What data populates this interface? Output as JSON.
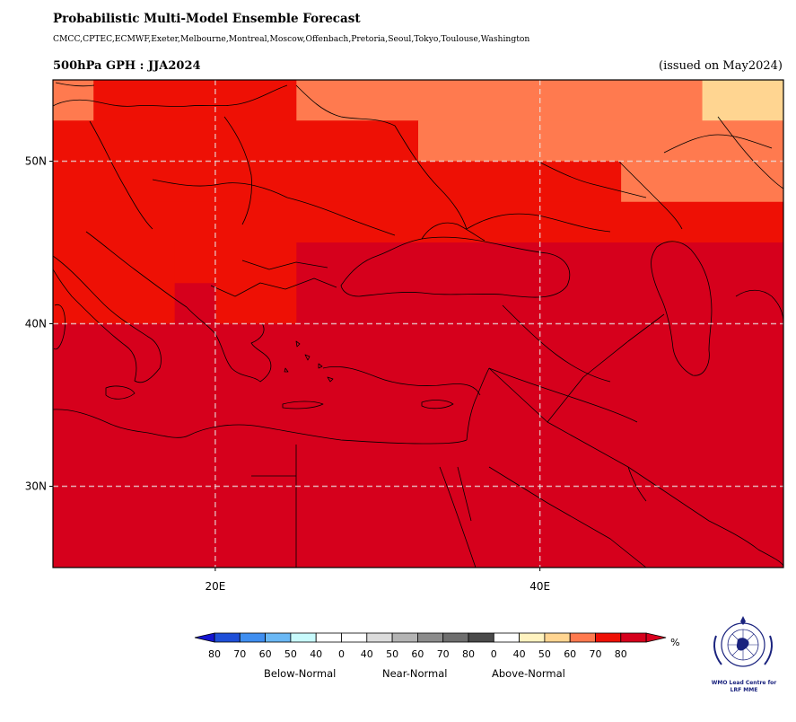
{
  "header": {
    "title": "Probabilistic Multi-Model Ensemble Forecast",
    "models": "CMCC,CPTEC,ECMWF,Exeter,Melbourne,Montreal,Moscow,Offenbach,Pretoria,Seoul,Tokyo,Toulouse,Washington",
    "variable": "500hPa GPH : JJA2024",
    "issued": "(issued on May2024)"
  },
  "map": {
    "lon_range": [
      10,
      55
    ],
    "lat_range": [
      25,
      55
    ],
    "lat_ticks": [
      {
        "value": 50,
        "label": "50N"
      },
      {
        "value": 40,
        "label": "40N"
      },
      {
        "value": 30,
        "label": "30N"
      }
    ],
    "lon_ticks": [
      {
        "value": 20,
        "label": "20E"
      },
      {
        "value": 40,
        "label": "40E"
      }
    ],
    "gridlines": true,
    "probability_cells": [
      {
        "lon": [
          10,
          12.5
        ],
        "lat": [
          52.5,
          55
        ],
        "value": 60
      },
      {
        "lon": [
          12.5,
          25
        ],
        "lat": [
          52.5,
          55
        ],
        "value": 70
      },
      {
        "lon": [
          25,
          50
        ],
        "lat": [
          52.5,
          55
        ],
        "value": 60
      },
      {
        "lon": [
          50,
          55
        ],
        "lat": [
          52.5,
          55
        ],
        "value": 50
      },
      {
        "lon": [
          10,
          32.5
        ],
        "lat": [
          50,
          52.5
        ],
        "value": 70
      },
      {
        "lon": [
          32.5,
          55
        ],
        "lat": [
          50,
          52.5
        ],
        "value": 60
      },
      {
        "lon": [
          10,
          45
        ],
        "lat": [
          47.5,
          50
        ],
        "value": 70
      },
      {
        "lon": [
          45,
          55
        ],
        "lat": [
          47.5,
          50
        ],
        "value": 60
      },
      {
        "lon": [
          10,
          55
        ],
        "lat": [
          45,
          47.5
        ],
        "value": 70
      },
      {
        "lon": [
          10,
          17.5
        ],
        "lat": [
          40,
          45
        ],
        "value": 70
      },
      {
        "lon": [
          17.5,
          20
        ],
        "lat": [
          42.5,
          45
        ],
        "value": 70
      },
      {
        "lon": [
          20,
          25
        ],
        "lat": [
          40,
          45
        ],
        "value": 70
      },
      {
        "lon": [
          25,
          55
        ],
        "lat": [
          40,
          45
        ],
        "value": 80
      },
      {
        "lon": [
          17.5,
          20
        ],
        "lat": [
          40,
          42.5
        ],
        "value": 80
      },
      {
        "lon": [
          10,
          55
        ],
        "lat": [
          25,
          40
        ],
        "value": 80
      }
    ]
  },
  "colorbar": {
    "unit": "%",
    "below": {
      "title": "Below-Normal",
      "labels": [
        "80",
        "70",
        "60",
        "50",
        "40"
      ],
      "colors": [
        "#1e4fd8",
        "#3f8ef0",
        "#6ab8f5",
        "#c8fafc",
        "#ffffff"
      ]
    },
    "near": {
      "title": "Near-Normal",
      "labels": [
        "0",
        "40",
        "50",
        "60",
        "70",
        "80"
      ],
      "colors": [
        "#ffffff",
        "#dcdcdc",
        "#b4b4b4",
        "#8c8c8c",
        "#6e6e6e",
        "#4a4a4a"
      ]
    },
    "above": {
      "title": "Above-Normal",
      "labels": [
        "0",
        "40",
        "50",
        "60",
        "70",
        "80"
      ],
      "colors": [
        "#ffffff",
        "#fff3c0",
        "#ffd591",
        "#ff7a4f",
        "#ee1005",
        "#d6001c"
      ]
    },
    "tail_low_color": "#1414d0",
    "tail_high_color": "#d8001e"
  },
  "logo": {
    "caption_line1": "WMO Lead Centre for",
    "caption_line2": "LRF MME"
  }
}
